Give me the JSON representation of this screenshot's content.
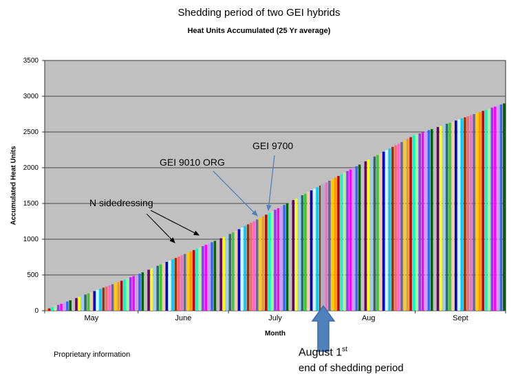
{
  "chart_data": {
    "type": "bar",
    "title": "Shedding period of two GEI hybrids",
    "subtitle": "Heat Units Accumulated (25 Yr average)",
    "ylabel": "Accumulated Heat Units",
    "xlabel": "Month",
    "ylim": [
      0,
      3500
    ],
    "y_ticks": [
      0,
      500,
      1000,
      1500,
      2000,
      2500,
      3000,
      3500
    ],
    "x_tick_labels": [
      "May",
      "June",
      "July",
      "Aug",
      "Sept"
    ],
    "month_center_frac": [
      0.1013,
      0.3007,
      0.5,
      0.7026,
      0.902
    ],
    "month_boundaries_frac": [
      0,
      0.2026,
      0.3987,
      0.6013,
      0.8039,
      1.0
    ],
    "grid": true,
    "legend": "none",
    "plot_bg": "#c0c0c0",
    "palette": [
      "#ff9900",
      "#3366ff",
      "#33cc33",
      "#ff66cc",
      "#9933ff",
      "#ffff00",
      "#00ccff",
      "#cc0000",
      "#006600",
      "#ffcc99",
      "#666699",
      "#ff00ff",
      "#99ccff",
      "#993300",
      "#00ffcc",
      "#c0c0c0",
      "#0000cc",
      "#ffcc00",
      "#cc99ff",
      "#336666",
      "#ff6666",
      "#99ff99",
      "#660066",
      "#ccffff"
    ],
    "highlight": {
      "index": 92,
      "color": "#b1afc4",
      "note": "August 1 bar"
    },
    "values": [
      16,
      32,
      48,
      65,
      81,
      97,
      113,
      129,
      145,
      161,
      177,
      194,
      210,
      226,
      242,
      258,
      274,
      290,
      306,
      323,
      339,
      355,
      371,
      387,
      403,
      419,
      435,
      452,
      468,
      484,
      500,
      518,
      537,
      555,
      573,
      592,
      610,
      628,
      647,
      665,
      683,
      702,
      720,
      738,
      757,
      775,
      793,
      812,
      830,
      848,
      867,
      885,
      903,
      922,
      940,
      958,
      977,
      995,
      1013,
      1032,
      1050,
      1073,
      1095,
      1118,
      1140,
      1163,
      1185,
      1208,
      1231,
      1253,
      1276,
      1298,
      1321,
      1344,
      1366,
      1389,
      1411,
      1434,
      1456,
      1479,
      1502,
      1524,
      1547,
      1569,
      1592,
      1615,
      1637,
      1660,
      1682,
      1705,
      1727,
      1750,
      1773,
      1795,
      1818,
      1840,
      1863,
      1885,
      1908,
      1931,
      1953,
      1976,
      1998,
      2021,
      2044,
      2066,
      2089,
      2111,
      2134,
      2156,
      2179,
      2202,
      2224,
      2247,
      2269,
      2292,
      2315,
      2337,
      2360,
      2382,
      2405,
      2427,
      2450,
      2465,
      2480,
      2495,
      2510,
      2525,
      2540,
      2555,
      2570,
      2585,
      2600,
      2615,
      2630,
      2645,
      2660,
      2675,
      2690,
      2705,
      2720,
      2735,
      2750,
      2765,
      2780,
      2795,
      2810,
      2825,
      2840,
      2855,
      2870,
      2885,
      2900
    ]
  },
  "annotations": {
    "n_sidedressing": "N sidedressing",
    "gei_9010": "GEI 9010 ORG",
    "gei_9700": "GEI 9700",
    "august_main": "August 1",
    "august_sup": "st",
    "august_line2": "end of shedding period",
    "arrow_blue": "#4f81bd",
    "arrow_black": "#000000"
  },
  "footer": {
    "proprietary": "Proprietary information"
  }
}
